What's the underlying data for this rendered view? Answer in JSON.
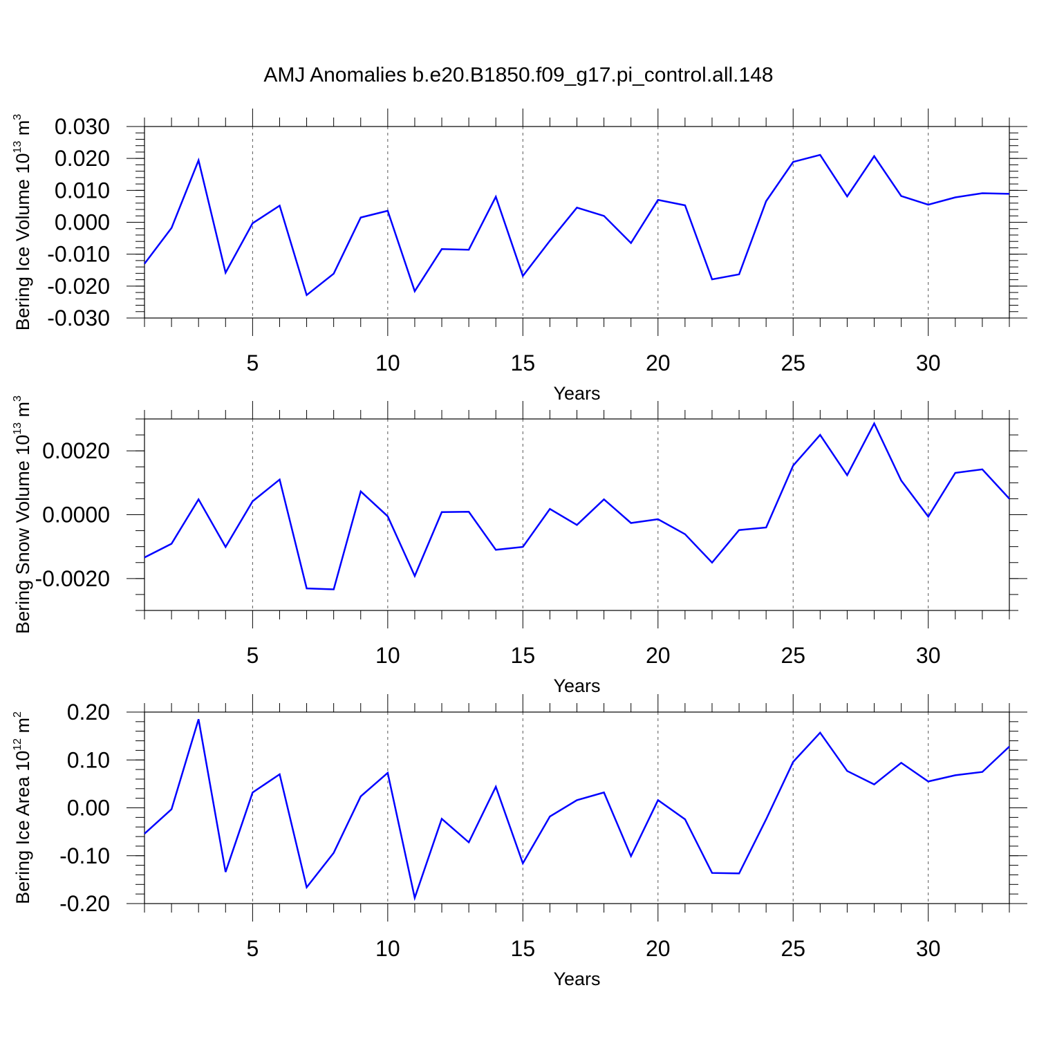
{
  "title": "AMJ Anomalies b.e20.B1850.f09_g17.pi_control.all.148",
  "colors": {
    "line": "#0000ff",
    "axes": "#000000",
    "grid": "#555555"
  },
  "chart_data": [
    {
      "type": "line",
      "xlabel": "Years",
      "ylabel": {
        "text": "Bering Ice Volume 10",
        "exp": "13",
        "unit": " m",
        "unit_exp": "3"
      },
      "xlim": [
        1,
        33
      ],
      "ylim": [
        -0.03,
        0.03
      ],
      "grid": "vertical dashed at major x ticks",
      "xticks": [
        5,
        10,
        15,
        20,
        25,
        30
      ],
      "xtick_labels": [
        "5",
        "10",
        "15",
        "20",
        "25",
        "30"
      ],
      "yticks": [
        -0.03,
        -0.02,
        -0.01,
        0.0,
        0.01,
        0.02,
        0.03
      ],
      "ytick_labels": [
        "-0.030",
        "-0.020",
        "-0.010",
        "0.000",
        "0.010",
        "0.020",
        "0.030"
      ],
      "yminor_step": 0.002,
      "x": [
        1,
        2,
        3,
        4,
        5,
        6,
        7,
        8,
        9,
        10,
        11,
        12,
        13,
        14,
        15,
        16,
        17,
        18,
        19,
        20,
        21,
        22,
        23,
        24,
        25,
        26,
        27,
        28,
        29,
        30,
        31,
        32,
        33
      ],
      "values": [
        -0.013,
        -0.0018,
        0.0194,
        -0.0158,
        -0.0003,
        0.0052,
        -0.0228,
        -0.0161,
        0.0015,
        0.0036,
        -0.0216,
        -0.0084,
        -0.0086,
        0.008,
        -0.0168,
        -0.0058,
        0.0046,
        0.002,
        -0.0065,
        0.007,
        0.0053,
        -0.0179,
        -0.0163,
        0.0066,
        0.0189,
        0.0211,
        0.0081,
        0.0207,
        0.0082,
        0.0055,
        0.0078,
        0.0091,
        0.0089
      ]
    },
    {
      "type": "line",
      "xlabel": "Years",
      "ylabel": {
        "text": "Bering Snow Volume 10",
        "exp": "13",
        "unit": " m",
        "unit_exp": "3"
      },
      "xlim": [
        1,
        33
      ],
      "ylim": [
        -0.003,
        0.003
      ],
      "grid": "vertical dashed at major x ticks",
      "xticks": [
        5,
        10,
        15,
        20,
        25,
        30
      ],
      "xtick_labels": [
        "5",
        "10",
        "15",
        "20",
        "25",
        "30"
      ],
      "yticks": [
        -0.002,
        0.0,
        0.002
      ],
      "ytick_labels": [
        "-0.0020",
        "0.0000",
        "0.0020"
      ],
      "yminor_step": 0.0005,
      "x": [
        1,
        2,
        3,
        4,
        5,
        6,
        7,
        8,
        9,
        10,
        11,
        12,
        13,
        14,
        15,
        16,
        17,
        18,
        19,
        20,
        21,
        22,
        23,
        24,
        25,
        26,
        27,
        28,
        29,
        30,
        31,
        32,
        33
      ],
      "values": [
        -0.00134,
        -0.00091,
        0.00048,
        -0.00101,
        0.00042,
        0.0011,
        -0.00231,
        -0.00234,
        0.00073,
        -5e-05,
        -0.00192,
        8e-05,
        9e-05,
        -0.0011,
        -0.00101,
        0.00018,
        -0.00032,
        0.00048,
        -0.00026,
        -0.00014,
        -0.00061,
        -0.0015,
        -0.00048,
        -0.0004,
        0.00154,
        0.0025,
        0.00124,
        0.00286,
        0.00107,
        -6e-05,
        0.00131,
        0.00142,
        0.0005
      ]
    },
    {
      "type": "line",
      "xlabel": "Years",
      "ylabel": {
        "text": "Bering Ice Area 10",
        "exp": "12",
        "unit": " m",
        "unit_exp": "2"
      },
      "xlim": [
        1,
        33
      ],
      "ylim": [
        -0.2,
        0.2
      ],
      "grid": "vertical dashed at major x ticks",
      "xticks": [
        5,
        10,
        15,
        20,
        25,
        30
      ],
      "xtick_labels": [
        "5",
        "10",
        "15",
        "20",
        "25",
        "30"
      ],
      "yticks": [
        -0.2,
        -0.1,
        0.0,
        0.1,
        0.2
      ],
      "ytick_labels": [
        "-0.20",
        "-0.10",
        "0.00",
        "0.10",
        "0.20"
      ],
      "yminor_step": 0.02,
      "x": [
        1,
        2,
        3,
        4,
        5,
        6,
        7,
        8,
        9,
        10,
        11,
        12,
        13,
        14,
        15,
        16,
        17,
        18,
        19,
        20,
        21,
        22,
        23,
        24,
        25,
        26,
        27,
        28,
        29,
        30,
        31,
        32,
        33
      ],
      "values": [
        -0.054,
        -0.003,
        0.185,
        -0.134,
        0.032,
        0.07,
        -0.166,
        -0.094,
        0.024,
        0.073,
        -0.188,
        -0.023,
        -0.072,
        0.044,
        -0.116,
        -0.018,
        0.016,
        0.032,
        -0.101,
        0.016,
        -0.024,
        -0.136,
        -0.137,
        -0.024,
        0.096,
        0.157,
        0.077,
        0.049,
        0.094,
        0.055,
        0.068,
        0.075,
        0.128
      ]
    }
  ]
}
